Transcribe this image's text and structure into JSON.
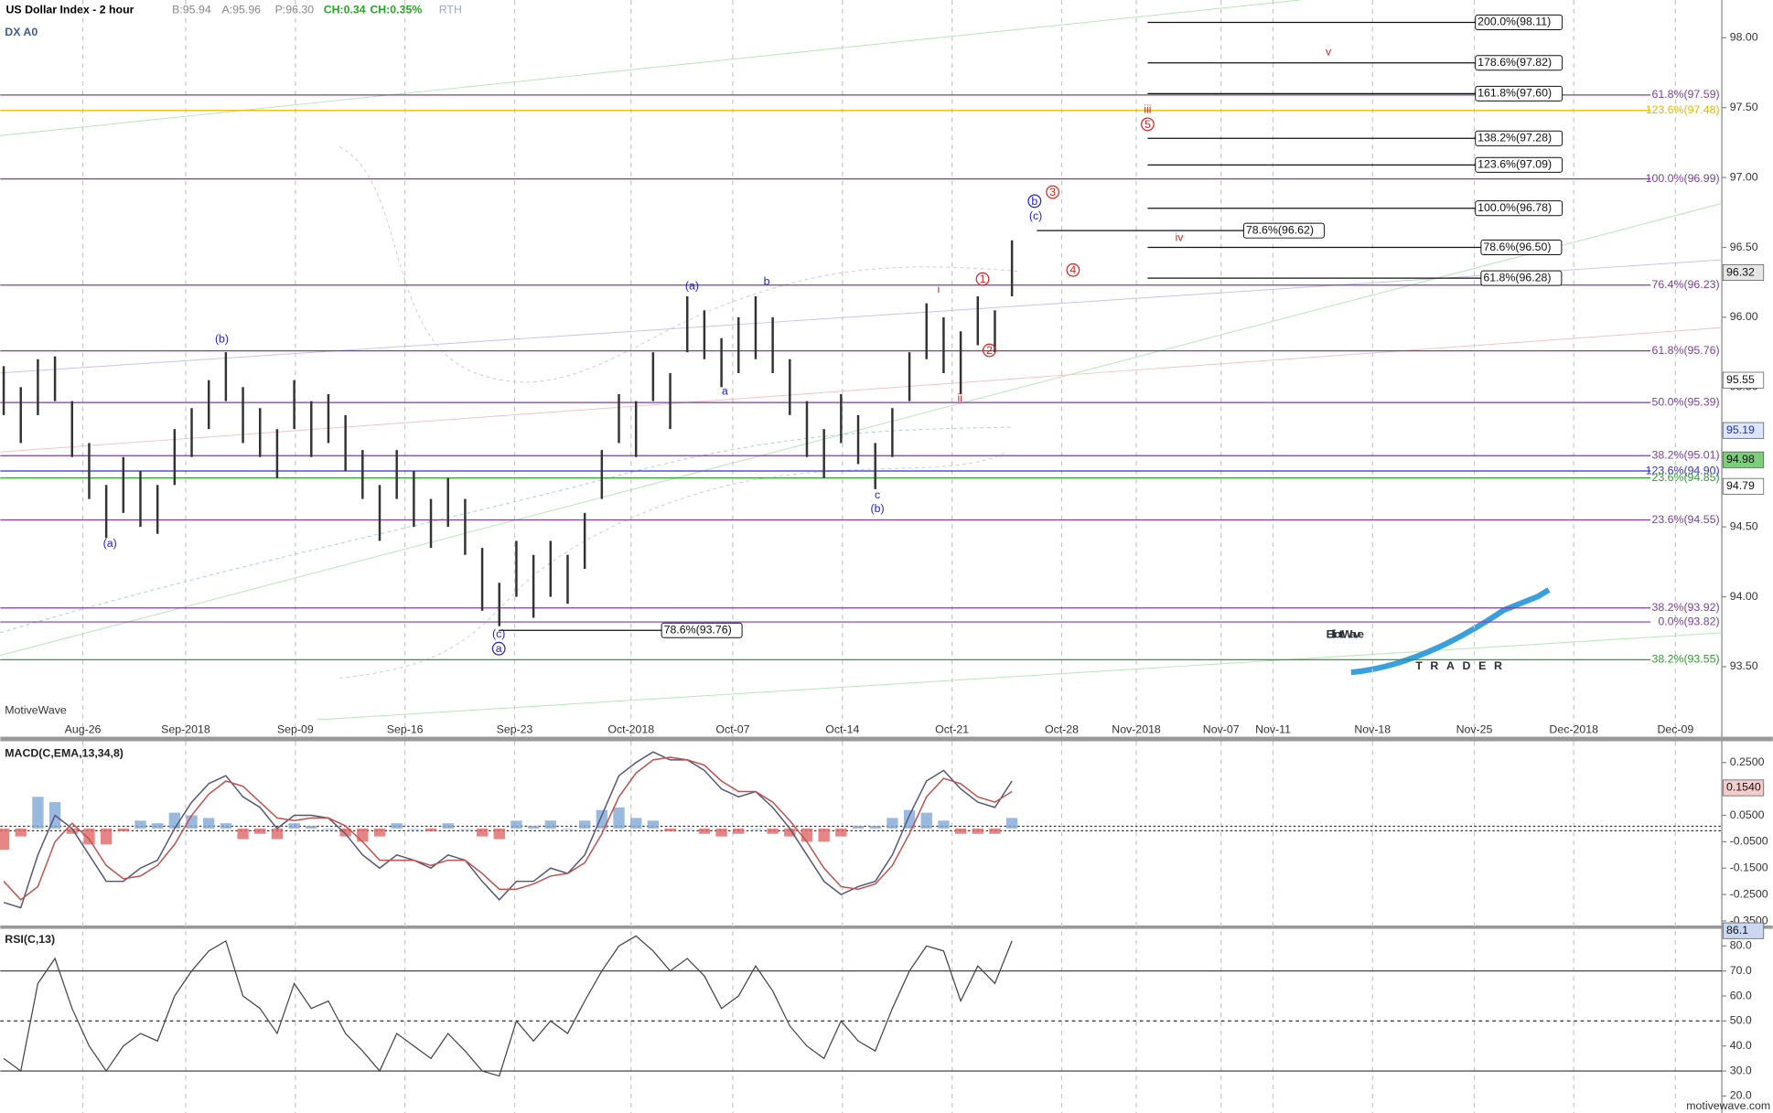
{
  "header": {
    "title": "US Dollar Index - 2 hour",
    "bid": "B:95.94",
    "ask": "A:95.96",
    "price": "P:96.30",
    "change": "CH:0.34",
    "change_pct": "CH:0.35%",
    "session": "RTH",
    "symbol": "DX A0",
    "watermark": "MotiveWave",
    "site": "motivewave.com",
    "logo_main": "ElliottWave",
    "logo_sub": "TRADER"
  },
  "chart_data": [
    {
      "type": "ohlc",
      "color": "#333333",
      "ylim": [
        93.12,
        98.27
      ],
      "yticks": [
        {
          "value": 93.5,
          "label": "93.50"
        },
        {
          "value": 94,
          "label": "94.00"
        },
        {
          "value": 94.5,
          "label": "94.50"
        },
        {
          "value": 95,
          "label": "95.00"
        },
        {
          "value": 95.5,
          "label": "95.50"
        },
        {
          "value": 96,
          "label": "96.00"
        },
        {
          "value": 96.5,
          "label": "96.50"
        },
        {
          "value": 97,
          "label": "97.00"
        },
        {
          "value": 97.5,
          "label": "97.50"
        },
        {
          "value": 98,
          "label": "98.00"
        }
      ],
      "xtick_labels": [
        "Aug-26",
        "Sep-2018",
        "Sep-09",
        "Sep-16",
        "Sep-23",
        "Oct-2018",
        "Oct-07",
        "Oct-14",
        "Oct-21",
        "Oct-28",
        "Nov-2018",
        "Nov-07",
        "Nov-11",
        "Nov-18",
        "Nov-25",
        "Dec-2018",
        "Dec-09"
      ],
      "grid": true,
      "high": [
        95.65,
        95.5,
        95.7,
        95.72,
        95.4,
        95.1,
        94.8,
        95.0,
        94.9,
        94.8,
        95.2,
        95.35,
        95.55,
        95.75,
        95.5,
        95.35,
        95.2,
        95.55,
        95.4,
        95.45,
        95.3,
        95.05,
        94.8,
        95.05,
        94.9,
        94.7,
        94.85,
        94.7,
        94.35,
        94.1,
        94.4,
        94.3,
        94.4,
        94.3,
        94.6,
        95.05,
        95.45,
        95.4,
        95.75,
        95.6,
        96.15,
        96.05,
        95.85,
        96.0,
        96.15,
        96.0,
        95.7,
        95.4,
        95.2,
        95.45,
        95.3,
        95.1,
        95.35,
        95.75,
        96.1,
        96.0,
        95.9,
        96.15,
        96.05,
        96.55
      ],
      "low": [
        95.3,
        95.1,
        95.3,
        95.4,
        95.0,
        94.7,
        94.42,
        94.6,
        94.5,
        94.45,
        94.8,
        95.0,
        95.2,
        95.4,
        95.1,
        95.0,
        94.85,
        95.2,
        95.0,
        95.1,
        94.9,
        94.7,
        94.4,
        94.7,
        94.5,
        94.35,
        94.5,
        94.3,
        93.9,
        93.79,
        94.0,
        93.85,
        94.0,
        93.95,
        94.2,
        94.7,
        95.1,
        95.0,
        95.4,
        95.2,
        95.75,
        95.7,
        95.5,
        95.6,
        95.7,
        95.6,
        95.3,
        95.0,
        94.85,
        95.1,
        94.95,
        94.77,
        95.0,
        95.4,
        95.7,
        95.6,
        95.45,
        95.8,
        95.75,
        96.15
      ],
      "levels": [
        {
          "value": 97.59,
          "label": "61.8%(97.59)",
          "color": "#7b3fa0"
        },
        {
          "value": 97.48,
          "label": "123.6%(97.48)",
          "color": "#e6b800"
        },
        {
          "value": 96.99,
          "label": "100.0%(96.99)",
          "color": "#7b3fa0"
        },
        {
          "value": 96.23,
          "label": "76.4%(96.23)",
          "color": "#7b3fa0"
        },
        {
          "value": 95.76,
          "label": "61.8%(95.76)",
          "color": "#7b3fa0"
        },
        {
          "value": 95.39,
          "label": "50.0%(95.39)",
          "color": "#7b3fa0"
        },
        {
          "value": 95.01,
          "label": "38.2%(95.01)",
          "color": "#7b3fa0"
        },
        {
          "value": 94.9,
          "label": "123.6%(94.90)",
          "color": "#3333cc"
        },
        {
          "value": 94.85,
          "label": "23.6%(94.85)",
          "color": "#2e9e2e"
        },
        {
          "value": 94.55,
          "label": "23.6%(94.55)",
          "color": "#7b3fa0"
        },
        {
          "value": 93.92,
          "label": "38.2%(93.92)",
          "color": "#7b3fa0"
        },
        {
          "value": 93.82,
          "label": "0.0%(93.82)",
          "color": "#7b3fa0"
        },
        {
          "value": 93.55,
          "label": "38.2%(93.55)",
          "color": "#2e9e2e"
        }
      ],
      "boxed_levels": [
        {
          "value": 98.11,
          "label": "200.0%(98.11)"
        },
        {
          "value": 97.82,
          "label": "178.6%(97.82)"
        },
        {
          "value": 97.6,
          "label": "161.8%(97.60)"
        },
        {
          "value": 97.28,
          "label": "138.2%(97.28)"
        },
        {
          "value": 97.09,
          "label": "123.6%(97.09)"
        },
        {
          "value": 96.78,
          "label": "100.0%(96.78)"
        },
        {
          "value": 96.5,
          "label": "78.6%(96.50)"
        },
        {
          "value": 96.28,
          "label": "61.8%(96.28)"
        },
        {
          "value": 96.62,
          "label": "78.6%(96.62)"
        },
        {
          "value": 93.76,
          "label": "78.6%(93.76)"
        }
      ],
      "price_tags": [
        {
          "value": 96.32,
          "color": "#e6e6e6"
        },
        {
          "value": 95.55,
          "color": "#ffffff"
        },
        {
          "value": 95.19,
          "color": "#dde6ff"
        },
        {
          "value": 94.98,
          "color": "#7ccd7c"
        },
        {
          "value": 94.79,
          "color": "#ffffff"
        }
      ],
      "wave_labels": [
        {
          "text": "(b)",
          "color": "#2222cc"
        },
        {
          "text": "(a)",
          "color": "#2222cc"
        },
        {
          "text": "(c)",
          "color": "#2222cc"
        },
        {
          "text": "a",
          "color": "#2222cc",
          "circled": true
        },
        {
          "text": "(a)",
          "color": "#2222cc"
        },
        {
          "text": "b",
          "color": "#2222cc"
        },
        {
          "text": "a",
          "color": "#2222cc"
        },
        {
          "text": "c",
          "color": "#2222cc"
        },
        {
          "text": "(b)",
          "color": "#2222cc"
        },
        {
          "text": "i",
          "color": "#dd2222"
        },
        {
          "text": "ii",
          "color": "#dd2222"
        },
        {
          "text": "1",
          "color": "#dd2222",
          "circled": true
        },
        {
          "text": "2",
          "color": "#dd2222",
          "circled": true
        },
        {
          "text": "3",
          "color": "#dd2222",
          "circled": true
        },
        {
          "text": "4",
          "color": "#dd2222",
          "circled": true
        },
        {
          "text": "iii",
          "color": "#dd2222"
        },
        {
          "text": "5",
          "color": "#dd2222",
          "circled": true
        },
        {
          "text": "iv",
          "color": "#dd2222"
        },
        {
          "text": "v",
          "color": "#dd2222"
        },
        {
          "text": "b",
          "color": "#2222cc",
          "circled": true
        },
        {
          "text": "(c)",
          "color": "#2222cc"
        }
      ]
    },
    {
      "type": "macd",
      "title": "MACD(C,EMA,13,34,8)",
      "ylim": [
        -0.367,
        0.322
      ],
      "yticks": [
        {
          "value": 0.25,
          "label": "0.2500"
        },
        {
          "value": 0.05,
          "label": "0.0500"
        },
        {
          "value": -0.05,
          "label": "-0.0500"
        },
        {
          "value": -0.15,
          "label": "-0.1500"
        },
        {
          "value": -0.25,
          "label": "-0.2500"
        },
        {
          "value": -0.35,
          "label": "-0.3500"
        }
      ],
      "tag": {
        "value": 0.154,
        "label": "0.1540",
        "color": "#f4cccc"
      },
      "series": [
        {
          "color": "#555577",
          "values": [
            -0.28,
            -0.3,
            -0.1,
            0.05,
            0.0,
            -0.1,
            -0.2,
            -0.2,
            -0.15,
            -0.12,
            0.0,
            0.1,
            0.17,
            0.2,
            0.12,
            0.08,
            0.0,
            0.05,
            0.05,
            0.04,
            -0.02,
            -0.1,
            -0.15,
            -0.1,
            -0.12,
            -0.15,
            -0.1,
            -0.12,
            -0.2,
            -0.27,
            -0.2,
            -0.2,
            -0.15,
            -0.17,
            -0.1,
            0.05,
            0.2,
            0.25,
            0.29,
            0.26,
            0.26,
            0.22,
            0.15,
            0.12,
            0.14,
            0.08,
            0.0,
            -0.1,
            -0.2,
            -0.25,
            -0.22,
            -0.2,
            -0.1,
            0.05,
            0.18,
            0.22,
            0.15,
            0.1,
            0.08,
            0.18
          ]
        },
        {
          "color": "#c0504d",
          "values": [
            -0.2,
            -0.27,
            -0.22,
            -0.05,
            0.02,
            -0.04,
            -0.14,
            -0.19,
            -0.18,
            -0.14,
            -0.06,
            0.05,
            0.13,
            0.18,
            0.16,
            0.1,
            0.04,
            0.03,
            0.04,
            0.04,
            0.01,
            -0.05,
            -0.12,
            -0.12,
            -0.12,
            -0.14,
            -0.12,
            -0.12,
            -0.17,
            -0.23,
            -0.23,
            -0.21,
            -0.18,
            -0.17,
            -0.13,
            -0.02,
            0.12,
            0.21,
            0.26,
            0.27,
            0.26,
            0.24,
            0.18,
            0.14,
            0.14,
            0.1,
            0.03,
            -0.05,
            -0.15,
            -0.22,
            -0.23,
            -0.21,
            -0.14,
            -0.02,
            0.12,
            0.19,
            0.17,
            0.12,
            0.1,
            0.14
          ]
        }
      ],
      "histogram": {
        "colors": [
          "#7fa8d6",
          "#e06666"
        ],
        "values": [
          -0.08,
          -0.03,
          0.12,
          0.1,
          -0.02,
          -0.06,
          -0.06,
          -0.01,
          0.03,
          0.02,
          0.06,
          0.05,
          0.04,
          0.02,
          -0.04,
          -0.02,
          -0.04,
          0.02,
          0.01,
          0.0,
          -0.03,
          -0.05,
          -0.03,
          0.02,
          0.0,
          -0.01,
          0.02,
          0.0,
          -0.03,
          -0.04,
          0.03,
          0.01,
          0.03,
          0.0,
          0.03,
          0.07,
          0.08,
          0.04,
          0.03,
          -0.01,
          0.0,
          -0.02,
          -0.03,
          -0.02,
          0.0,
          -0.02,
          -0.03,
          -0.05,
          -0.05,
          -0.03,
          0.01,
          0.01,
          0.04,
          0.07,
          0.06,
          0.03,
          -0.02,
          -0.02,
          -0.02,
          0.04
        ]
      }
    },
    {
      "type": "rsi",
      "title": "RSI(C,13)",
      "ylim": [
        13.2,
        86.4
      ],
      "yticks": [
        {
          "value": 20,
          "label": "20.0"
        },
        {
          "value": 30,
          "label": "30.0"
        },
        {
          "value": 40,
          "label": "40.0"
        },
        {
          "value": 50,
          "label": "50.0"
        },
        {
          "value": 60,
          "label": "60.0"
        },
        {
          "value": 70,
          "label": "70.0"
        },
        {
          "value": 80,
          "label": "80.0"
        }
      ],
      "levels": [
        70,
        50,
        30
      ],
      "tag": {
        "value": 86.1,
        "color": "#c9d7f0"
      },
      "color": "#444444",
      "values": [
        35,
        30,
        65,
        75,
        55,
        40,
        30,
        40,
        45,
        42,
        60,
        70,
        78,
        82,
        60,
        55,
        45,
        65,
        55,
        58,
        45,
        38,
        30,
        45,
        40,
        35,
        45,
        38,
        30,
        28,
        50,
        42,
        50,
        45,
        58,
        70,
        80,
        84,
        78,
        70,
        75,
        68,
        55,
        60,
        72,
        62,
        48,
        40,
        35,
        50,
        42,
        38,
        55,
        70,
        80,
        78,
        58,
        72,
        65,
        82
      ]
    }
  ]
}
